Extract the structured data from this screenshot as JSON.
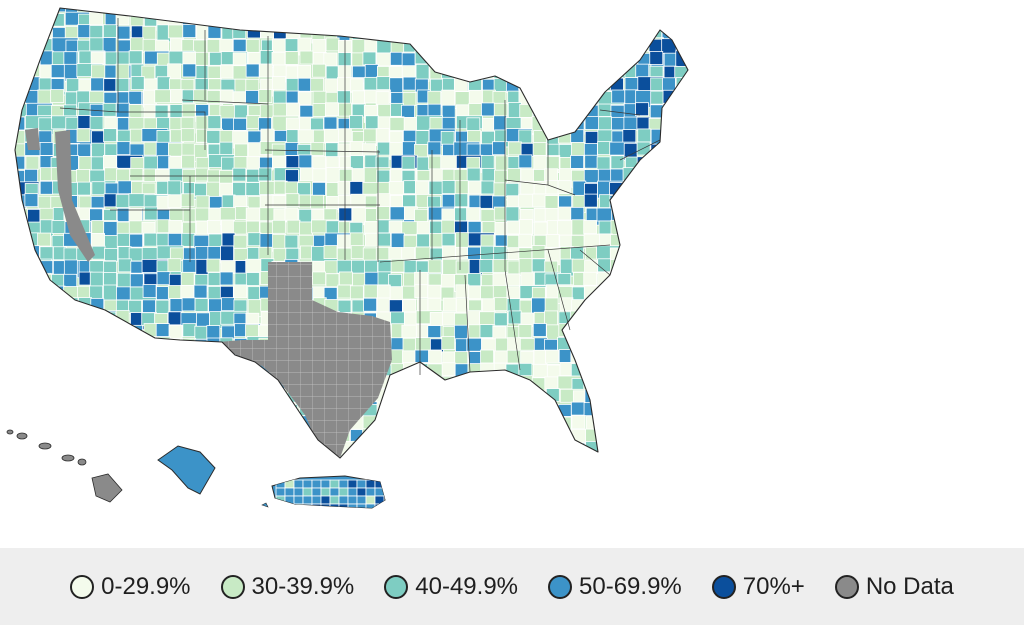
{
  "colors": {
    "c0": "#f4fbec",
    "c30": "#c8eac5",
    "c40": "#7ecdc2",
    "c50": "#3c93c8",
    "c70": "#0b4f9c",
    "nodata": "#8a8a8a",
    "outline": "#2b2b2b"
  },
  "legend": {
    "items": [
      {
        "label": "0-29.9%",
        "color_key": "c0"
      },
      {
        "label": "30-39.9%",
        "color_key": "c30"
      },
      {
        "label": "40-49.9%",
        "color_key": "c40"
      },
      {
        "label": "50-69.9%",
        "color_key": "c50"
      },
      {
        "label": "70%+",
        "color_key": "c70"
      },
      {
        "label": "No Data",
        "color_key": "nodata"
      }
    ]
  },
  "regions": {
    "texas": "No Data",
    "hawaii": "No Data",
    "alaska": "50-69.9%",
    "puerto_rico": "50-69.9%"
  }
}
